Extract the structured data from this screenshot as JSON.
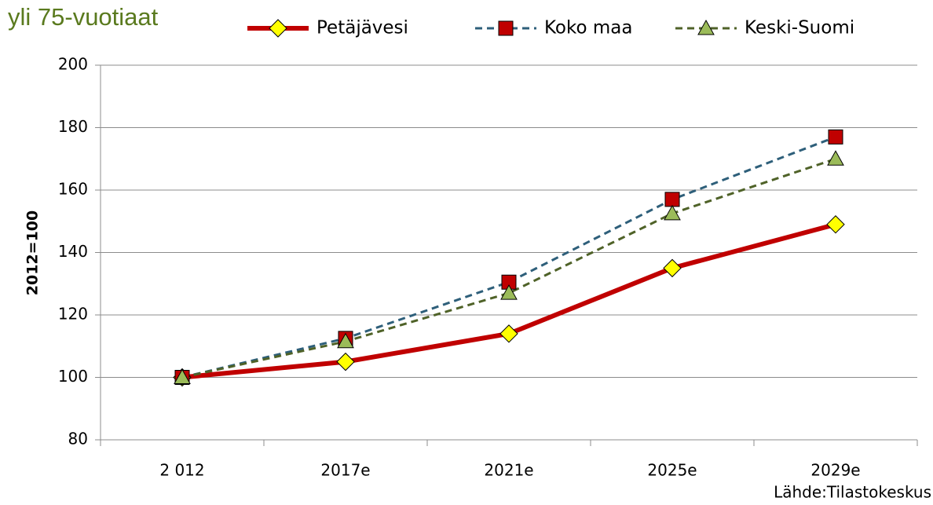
{
  "chart_data": {
    "type": "line",
    "title": "yli 75-vuotiaat",
    "y_label": "2012=100",
    "source": "Lähde:Tilastokeskus",
    "categories": [
      "2 012",
      "2017e",
      "2021e",
      "2025e",
      "2029e"
    ],
    "series": [
      {
        "name": "Petäjävesi",
        "color": "#c00000",
        "marker": "diamond",
        "marker_color": "#ffff00",
        "style": "solid",
        "values": [
          100,
          105,
          114,
          135,
          149
        ]
      },
      {
        "name": "Koko maa",
        "color": "#2e5f7a",
        "marker": "square",
        "marker_color": "#c00000",
        "style": "dashed",
        "values": [
          100,
          112.5,
          130.5,
          157,
          177
        ]
      },
      {
        "name": "Keski-Suomi",
        "color": "#4f6228",
        "marker": "triangle",
        "marker_color": "#9bbb59",
        "style": "dashed",
        "values": [
          100,
          111.5,
          127,
          152.5,
          170
        ]
      }
    ],
    "ylim": [
      80,
      200
    ],
    "yticks": [
      80,
      100,
      120,
      140,
      160,
      180,
      200
    ],
    "grid": true,
    "legend": "top"
  }
}
